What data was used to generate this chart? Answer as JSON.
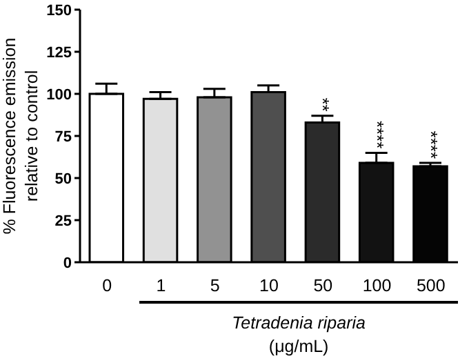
{
  "chart_data": {
    "type": "bar",
    "categories": [
      "0",
      "1",
      "5",
      "10",
      "50",
      "100",
      "500"
    ],
    "values": [
      100,
      97,
      98,
      101,
      83,
      59,
      57
    ],
    "colors": [
      "#ffffff",
      "#e0e0e0",
      "#929292",
      "#4f4f4f",
      "#2b2b2b",
      "#121212",
      "#050505"
    ],
    "errors": [
      [
        100,
        106
      ],
      [
        97,
        101
      ],
      [
        98,
        103
      ],
      [
        101,
        105
      ],
      [
        83,
        87
      ],
      [
        59,
        65
      ],
      [
        57,
        59
      ]
    ],
    "ylim": [
      0,
      150
    ],
    "yticks": [
      0,
      25,
      50,
      75,
      100,
      125,
      150
    ],
    "grid": false,
    "legend": false,
    "xlabel": "Tetradenia riparia\n(μg/mL)",
    "ylabel": "% Fluorescence emission\nrelative to control",
    "annotations": [
      {
        "text": "**",
        "x": "50",
        "y": 87
      },
      {
        "text": "****",
        "x": "100",
        "y": 65
      },
      {
        "text": "****",
        "x": "500",
        "y": 59
      }
    ]
  }
}
